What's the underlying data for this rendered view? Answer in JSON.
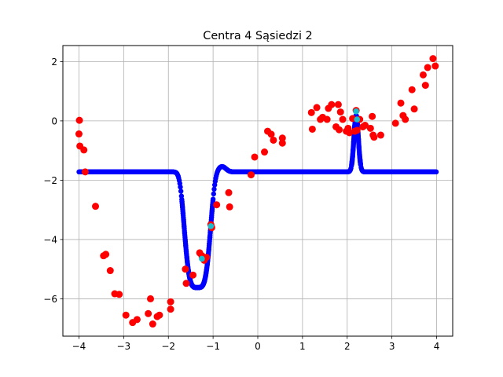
{
  "chart_data": {
    "type": "scatter",
    "title": "Centra 4 Sąsiedzi 2",
    "xlabel": "",
    "ylabel": "",
    "xlim": [
      -4.36,
      4.36
    ],
    "ylim": [
      -7.26,
      2.54
    ],
    "grid": true,
    "x_ticks": [
      -4,
      -3,
      -2,
      -1,
      0,
      1,
      2,
      3,
      4
    ],
    "y_ticks": [
      -6,
      -4,
      -2,
      0,
      2
    ],
    "colors": {
      "data": "#ff0000",
      "model": "#0000ff",
      "centers": "#17becf",
      "grid": "#b0b0b0"
    },
    "data_points": [
      [
        -3.99,
        0.02
      ],
      [
        -4.0,
        -0.44
      ],
      [
        -3.98,
        -0.85
      ],
      [
        -3.89,
        -0.98
      ],
      [
        -3.86,
        -1.72
      ],
      [
        -3.63,
        -2.88
      ],
      [
        -3.45,
        -4.55
      ],
      [
        -3.4,
        -4.5
      ],
      [
        -3.3,
        -5.05
      ],
      [
        -3.2,
        -5.83
      ],
      [
        -3.1,
        -5.85
      ],
      [
        -2.95,
        -6.55
      ],
      [
        -2.8,
        -6.8
      ],
      [
        -2.7,
        -6.7
      ],
      [
        -2.45,
        -6.5
      ],
      [
        -2.4,
        -6.0
      ],
      [
        -2.35,
        -6.85
      ],
      [
        -2.25,
        -6.6
      ],
      [
        -2.2,
        -6.55
      ],
      [
        -1.95,
        -6.1
      ],
      [
        -1.95,
        -6.35
      ],
      [
        -1.62,
        -5.0
      ],
      [
        -1.6,
        -5.48
      ],
      [
        -1.45,
        -5.2
      ],
      [
        -1.3,
        -4.45
      ],
      [
        -1.25,
        -4.55
      ],
      [
        -1.2,
        -4.7
      ],
      [
        -1.15,
        -4.6
      ],
      [
        -1.05,
        -3.5
      ],
      [
        -1.03,
        -3.6
      ],
      [
        -0.92,
        -2.83
      ],
      [
        -0.65,
        -2.42
      ],
      [
        -0.63,
        -2.9
      ],
      [
        -0.15,
        -1.82
      ],
      [
        -0.07,
        -1.22
      ],
      [
        0.15,
        -1.05
      ],
      [
        0.22,
        -0.35
      ],
      [
        0.3,
        -0.45
      ],
      [
        0.35,
        -0.65
      ],
      [
        0.55,
        -0.58
      ],
      [
        0.55,
        -0.75
      ],
      [
        1.2,
        0.28
      ],
      [
        1.22,
        -0.28
      ],
      [
        1.32,
        0.45
      ],
      [
        1.4,
        0.05
      ],
      [
        1.45,
        0.12
      ],
      [
        1.55,
        0.05
      ],
      [
        1.58,
        0.42
      ],
      [
        1.65,
        0.55
      ],
      [
        1.75,
        -0.2
      ],
      [
        1.8,
        0.55
      ],
      [
        1.82,
        -0.3
      ],
      [
        1.85,
        0.3
      ],
      [
        1.9,
        0.05
      ],
      [
        1.98,
        -0.35
      ],
      [
        2.02,
        -0.25
      ],
      [
        2.05,
        -0.4
      ],
      [
        2.12,
        0.08
      ],
      [
        2.17,
        -0.35
      ],
      [
        2.2,
        0.35
      ],
      [
        2.22,
        -0.32
      ],
      [
        2.28,
        0.05
      ],
      [
        2.35,
        -0.2
      ],
      [
        2.4,
        -0.15
      ],
      [
        2.52,
        -0.25
      ],
      [
        2.56,
        0.15
      ],
      [
        2.58,
        -0.48
      ],
      [
        2.6,
        -0.55
      ],
      [
        2.75,
        -0.48
      ],
      [
        3.08,
        -0.08
      ],
      [
        3.2,
        0.6
      ],
      [
        3.25,
        0.18
      ],
      [
        3.3,
        0.05
      ],
      [
        3.45,
        1.05
      ],
      [
        3.5,
        0.4
      ],
      [
        3.7,
        1.55
      ],
      [
        3.75,
        1.2
      ],
      [
        3.8,
        1.8
      ],
      [
        3.92,
        2.1
      ],
      [
        3.97,
        1.85
      ]
    ],
    "model_curve_note": "",
    "center_points": [
      [
        -1.05,
        -3.55
      ],
      [
        -1.25,
        -4.65
      ],
      [
        2.2,
        0.32
      ],
      [
        2.22,
        0.05
      ]
    ]
  }
}
